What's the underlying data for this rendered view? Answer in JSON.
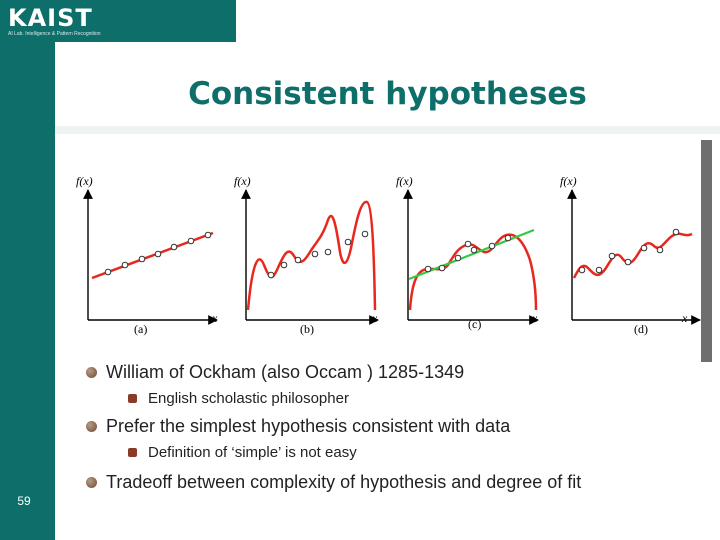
{
  "logo": {
    "text": "KAIST",
    "subtitle": "AI Lab. Intelligence & Pattern Recognition"
  },
  "slide": {
    "title": "Consistent hypotheses",
    "page_number": "59"
  },
  "figure": {
    "panels": [
      {
        "ylabel": "f(x)",
        "xlabel": "x",
        "caption": "(a)"
      },
      {
        "ylabel": "f(x)",
        "xlabel": "x",
        "caption": "(b)"
      },
      {
        "ylabel": "f(x)",
        "xlabel": "x",
        "caption": "(c)"
      },
      {
        "ylabel": "f(x)",
        "xlabel": "x",
        "caption": "(d)"
      }
    ],
    "colors": {
      "curve": "#e8281e",
      "fit_line": "#2ecc40",
      "axis": "#000000"
    }
  },
  "bullets": [
    {
      "level": 1,
      "text": "William of Ockham (also Occam ) 1285-1349"
    },
    {
      "level": 2,
      "text": "English scholastic philosopher"
    },
    {
      "level": 1,
      "text": "Prefer the simplest hypothesis consistent with data"
    },
    {
      "level": 2,
      "text": "Definition of ‘simple’ is not easy"
    },
    {
      "level": 1,
      "text": "Tradeoff between complexity of hypothesis and degree of fit"
    }
  ]
}
